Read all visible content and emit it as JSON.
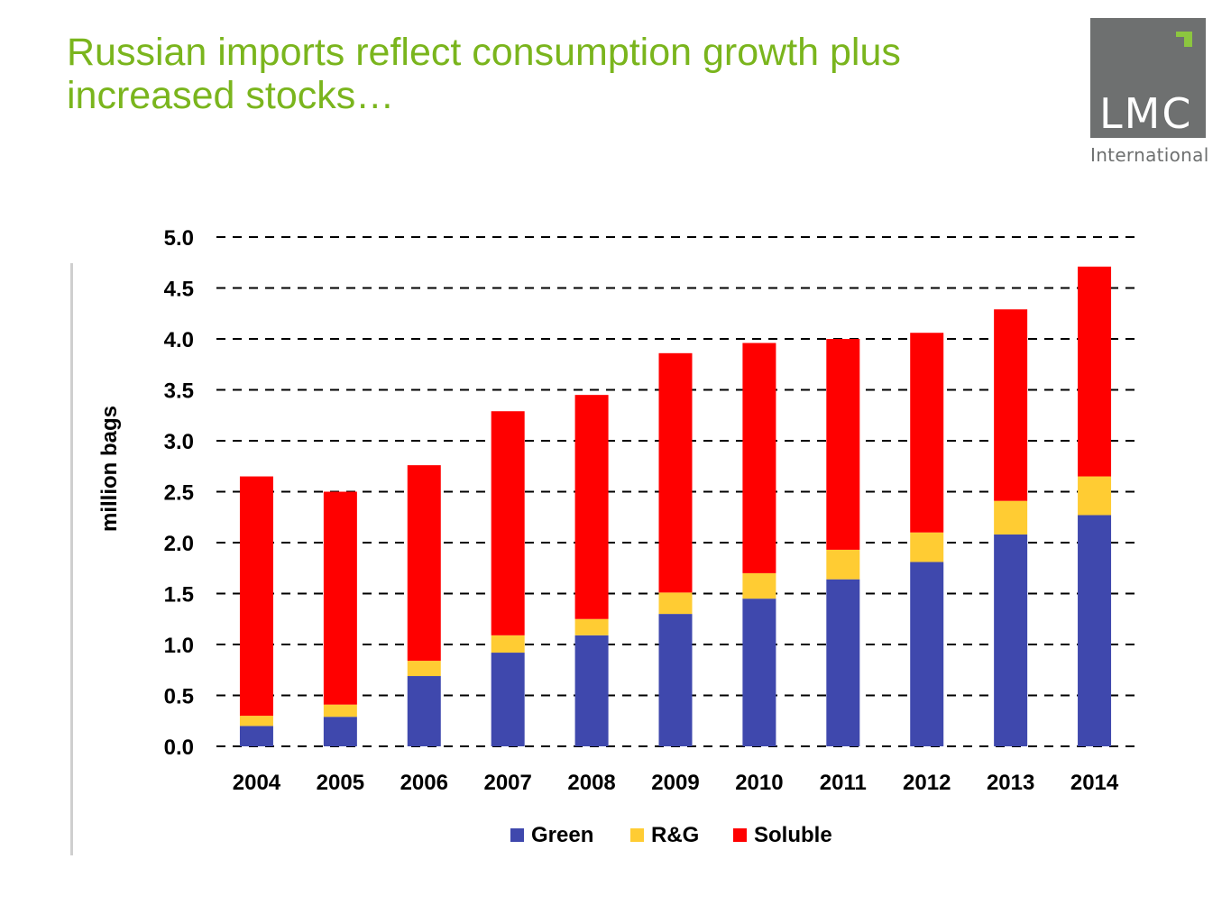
{
  "title_lines": [
    "Russian imports reflect consumption growth plus",
    "increased stocks…"
  ],
  "logo": {
    "name": "LMC",
    "subtitle": "International"
  },
  "colors": {
    "title": "#7ab51d",
    "green_series": "#3f48ad",
    "rg_series": "#ffcc33",
    "soluble_series": "#ff0000"
  },
  "chart_data": {
    "type": "bar",
    "stacked": true,
    "categories": [
      "2004",
      "2005",
      "2006",
      "2007",
      "2008",
      "2009",
      "2010",
      "2011",
      "2012",
      "2013",
      "2014"
    ],
    "series": [
      {
        "name": "Green",
        "color": "#3f48ad",
        "values": [
          0.2,
          0.29,
          0.69,
          0.92,
          1.09,
          1.3,
          1.45,
          1.64,
          1.81,
          2.08,
          2.27
        ]
      },
      {
        "name": "R&G",
        "color": "#ffcc33",
        "values": [
          0.1,
          0.12,
          0.15,
          0.17,
          0.16,
          0.21,
          0.25,
          0.29,
          0.29,
          0.33,
          0.38
        ]
      },
      {
        "name": "Soluble",
        "color": "#ff0000",
        "values": [
          2.35,
          2.09,
          1.92,
          2.2,
          2.2,
          2.35,
          2.26,
          2.07,
          1.96,
          1.88,
          2.06
        ]
      }
    ],
    "ylabel": "million bags",
    "xlabel": "",
    "ylim": [
      0,
      5
    ],
    "yticks": [
      "0.0",
      "0.5",
      "1.0",
      "1.5",
      "2.0",
      "2.5",
      "3.0",
      "3.5",
      "4.0",
      "4.5",
      "5.0"
    ],
    "grid": "dashed horizontal",
    "legend_position": "bottom"
  }
}
